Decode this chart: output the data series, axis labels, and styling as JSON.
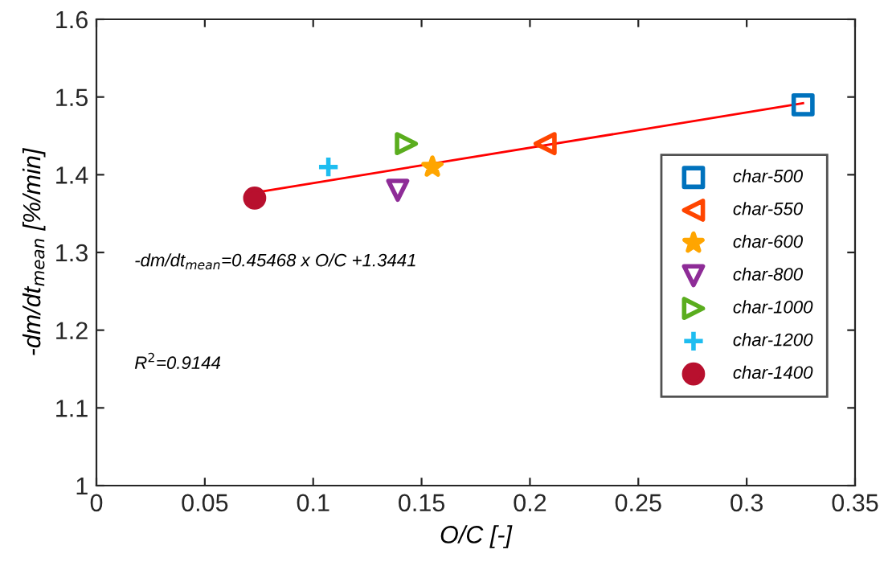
{
  "chart_data": {
    "type": "scatter",
    "xlabel": "O/C [-]",
    "ylabel": "-dm/dt$_{mean}$ [%/min]",
    "xlim": [
      0,
      0.35
    ],
    "xticks": [
      0,
      0.05,
      0.1,
      0.15,
      0.2,
      0.25,
      0.3,
      0.35
    ],
    "ylim": [
      1,
      1.6
    ],
    "yticks": [
      1,
      1.1,
      1.2,
      1.3,
      1.4,
      1.5,
      1.6
    ],
    "grid": false,
    "legend": "right",
    "annotations": [
      "-dm/dt$_{mean}$=0.45468 x O/C +1.3441",
      "R$^{2}$=0.9144"
    ],
    "series": [
      {
        "type": "line",
        "color": "#ff0000",
        "x": [
          0.073,
          0.326
        ],
        "values": [
          1.377,
          1.492
        ],
        "marker": "none",
        "line_style": "solid"
      },
      {
        "name": "char-500",
        "color": "#0072bd",
        "x": [
          0.326
        ],
        "values": [
          1.49
        ],
        "marker": "square"
      },
      {
        "name": "char-550",
        "color": "#ff4500",
        "x": [
          0.207
        ],
        "values": [
          1.44
        ],
        "marker": "triangle-left"
      },
      {
        "name": "char-600",
        "color": "#ffa500",
        "x": [
          0.155
        ],
        "values": [
          1.41
        ],
        "marker": "star"
      },
      {
        "name": "char-800",
        "color": "#8e2c97",
        "x": [
          0.139
        ],
        "values": [
          1.38
        ],
        "marker": "triangle-down"
      },
      {
        "name": "char-1000",
        "color": "#5aad1e",
        "x": [
          0.143
        ],
        "values": [
          1.44
        ],
        "marker": "triangle-right"
      },
      {
        "name": "char-1200",
        "color": "#1ebdf0",
        "x": [
          0.107
        ],
        "values": [
          1.41
        ],
        "marker": "cross"
      },
      {
        "name": "char-1400",
        "color": "#b8102e",
        "x": [
          0.073
        ],
        "values": [
          1.37
        ],
        "marker": "circle"
      }
    ]
  }
}
